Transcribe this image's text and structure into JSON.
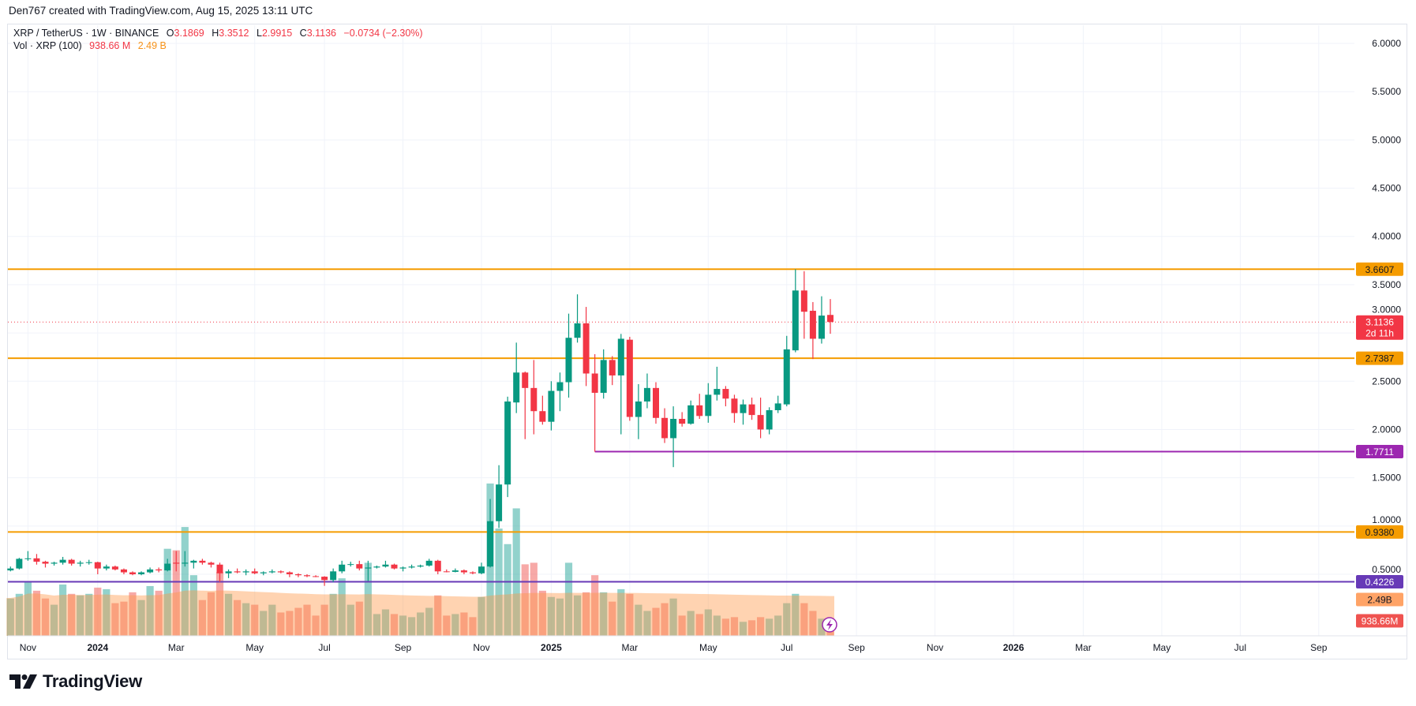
{
  "credit": "Den767 created with TradingView.com, Aug 15, 2025 13:11 UTC",
  "legend": {
    "symbol": "XRP / TetherUS · 1W · BINANCE",
    "o_label": "O",
    "o": "3.1869",
    "h_label": "H",
    "h": "3.3512",
    "l_label": "L",
    "l": "2.9915",
    "c_label": "C",
    "c": "3.1136",
    "change": "−0.0734 (−2.30%)",
    "vol_label": "Vol · XRP (100)",
    "vol": "938.66 M",
    "vol_ma": "2.49 B"
  },
  "logo_text": "TradingView",
  "colors": {
    "up": "#089981",
    "down": "#f23645",
    "orange_line": "#f59c00",
    "purple_line": "#9c27b0",
    "indigo_line": "#673ab7",
    "volume_ma_area": "#ffa366"
  },
  "chart_data": {
    "type": "candlestick",
    "interval": "1W",
    "y_range": [
      0.5,
      6.0
    ],
    "y_ticks": [
      "6.0000",
      "5.5000",
      "5.0000",
      "4.5000",
      "4.0000",
      "3.5000",
      "3.0000",
      "2.5000",
      "2.0000",
      "1.5000",
      "1.0000",
      "0.5000"
    ],
    "y_tick_values": [
      6.0,
      5.5,
      5.0,
      4.5,
      4.0,
      3.5,
      3.0,
      2.5,
      2.0,
      1.5,
      1.0,
      0.5
    ],
    "grid": true,
    "x_ticks": [
      {
        "label": "Nov",
        "date": "2023-11-06"
      },
      {
        "label": "2024",
        "date": "2024-01-01"
      },
      {
        "label": "Mar",
        "date": "2024-03-04"
      },
      {
        "label": "May",
        "date": "2024-05-06"
      },
      {
        "label": "Jul",
        "date": "2024-07-01"
      },
      {
        "label": "Sep",
        "date": "2024-09-02"
      },
      {
        "label": "Nov",
        "date": "2024-11-04"
      },
      {
        "label": "2025",
        "date": "2024-12-30"
      },
      {
        "label": "Mar",
        "date": "2025-03-03"
      },
      {
        "label": "May",
        "date": "2025-05-05"
      },
      {
        "label": "Jul",
        "date": "2025-07-07"
      },
      {
        "label": "Sep",
        "date": "2025-09-01"
      },
      {
        "label": "Nov",
        "date": "2025-11-03"
      },
      {
        "label": "2026",
        "date": "2026-01-05"
      },
      {
        "label": "Mar",
        "date": "2026-03-02"
      },
      {
        "label": "May",
        "date": "2026-05-04"
      },
      {
        "label": "Jul",
        "date": "2026-07-06"
      },
      {
        "label": "Sep",
        "date": "2026-09-07"
      }
    ],
    "candles_columns": [
      "date",
      "open",
      "high",
      "low",
      "close",
      "volume_billions"
    ],
    "candles": [
      [
        "2023-10-23",
        0.54,
        0.58,
        0.53,
        0.56,
        2.4
      ],
      [
        "2023-10-30",
        0.56,
        0.67,
        0.55,
        0.66,
        2.7
      ],
      [
        "2023-11-06",
        0.66,
        0.74,
        0.64,
        0.665,
        3.5
      ],
      [
        "2023-11-13",
        0.665,
        0.71,
        0.6,
        0.63,
        2.9
      ],
      [
        "2023-11-20",
        0.63,
        0.64,
        0.57,
        0.61,
        2.4
      ],
      [
        "2023-11-27",
        0.61,
        0.63,
        0.59,
        0.62,
        2.0
      ],
      [
        "2023-12-04",
        0.62,
        0.68,
        0.6,
        0.65,
        3.3
      ],
      [
        "2023-12-11",
        0.65,
        0.66,
        0.59,
        0.61,
        2.7
      ],
      [
        "2023-12-18",
        0.61,
        0.64,
        0.58,
        0.62,
        2.6
      ],
      [
        "2023-12-25",
        0.62,
        0.65,
        0.6,
        0.625,
        2.7
      ],
      [
        "2024-01-01",
        0.625,
        0.63,
        0.5,
        0.56,
        3.1
      ],
      [
        "2024-01-08",
        0.56,
        0.6,
        0.54,
        0.58,
        3.0
      ],
      [
        "2024-01-15",
        0.58,
        0.59,
        0.54,
        0.55,
        2.1
      ],
      [
        "2024-01-22",
        0.55,
        0.56,
        0.5,
        0.52,
        2.2
      ],
      [
        "2024-01-29",
        0.52,
        0.53,
        0.49,
        0.5,
        2.8
      ],
      [
        "2024-02-05",
        0.5,
        0.53,
        0.49,
        0.52,
        2.3
      ],
      [
        "2024-02-12",
        0.52,
        0.57,
        0.51,
        0.55,
        3.2
      ],
      [
        "2024-02-19",
        0.55,
        0.57,
        0.52,
        0.54,
        2.9
      ],
      [
        "2024-02-26",
        0.54,
        0.66,
        0.53,
        0.61,
        5.6
      ],
      [
        "2024-03-04",
        0.62,
        0.74,
        0.53,
        0.61,
        5.5
      ],
      [
        "2024-03-11",
        0.61,
        0.74,
        0.58,
        0.62,
        7.0
      ],
      [
        "2024-03-18",
        0.62,
        0.65,
        0.56,
        0.64,
        3.9
      ],
      [
        "2024-03-25",
        0.64,
        0.66,
        0.6,
        0.62,
        2.3
      ],
      [
        "2024-04-01",
        0.62,
        0.63,
        0.57,
        0.6,
        2.8
      ],
      [
        "2024-04-08",
        0.6,
        0.62,
        0.42,
        0.51,
        4.1
      ],
      [
        "2024-04-15",
        0.51,
        0.55,
        0.46,
        0.53,
        2.7
      ],
      [
        "2024-04-22",
        0.53,
        0.56,
        0.51,
        0.52,
        2.3
      ],
      [
        "2024-04-29",
        0.52,
        0.55,
        0.49,
        0.53,
        2.1
      ],
      [
        "2024-05-06",
        0.53,
        0.56,
        0.5,
        0.51,
        2.0
      ],
      [
        "2024-05-13",
        0.51,
        0.53,
        0.49,
        0.52,
        1.6
      ],
      [
        "2024-05-20",
        0.52,
        0.55,
        0.51,
        0.53,
        2.0
      ],
      [
        "2024-05-27",
        0.53,
        0.54,
        0.51,
        0.52,
        1.5
      ],
      [
        "2024-06-03",
        0.52,
        0.53,
        0.47,
        0.5,
        1.6
      ],
      [
        "2024-06-10",
        0.5,
        0.51,
        0.47,
        0.49,
        1.8
      ],
      [
        "2024-06-17",
        0.49,
        0.5,
        0.47,
        0.48,
        2.0
      ],
      [
        "2024-06-24",
        0.48,
        0.49,
        0.47,
        0.475,
        1.3
      ],
      [
        "2024-07-01",
        0.475,
        0.48,
        0.38,
        0.44,
        2.0
      ],
      [
        "2024-07-08",
        0.44,
        0.56,
        0.42,
        0.53,
        2.7
      ],
      [
        "2024-07-15",
        0.53,
        0.64,
        0.51,
        0.6,
        3.7
      ],
      [
        "2024-07-22",
        0.6,
        0.63,
        0.58,
        0.605,
        2.0
      ],
      [
        "2024-07-29",
        0.605,
        0.64,
        0.54,
        0.56,
        2.2
      ],
      [
        "2024-08-05",
        0.56,
        0.64,
        0.43,
        0.57,
        4.7
      ],
      [
        "2024-08-12",
        0.57,
        0.59,
        0.56,
        0.58,
        1.4
      ],
      [
        "2024-08-19",
        0.58,
        0.64,
        0.57,
        0.6,
        1.7
      ],
      [
        "2024-08-26",
        0.6,
        0.61,
        0.55,
        0.56,
        1.4
      ],
      [
        "2024-09-02",
        0.56,
        0.58,
        0.53,
        0.57,
        1.3
      ],
      [
        "2024-09-09",
        0.57,
        0.6,
        0.56,
        0.58,
        1.2
      ],
      [
        "2024-09-16",
        0.58,
        0.6,
        0.57,
        0.59,
        1.5
      ],
      [
        "2024-09-23",
        0.59,
        0.66,
        0.58,
        0.64,
        1.8
      ],
      [
        "2024-09-30",
        0.64,
        0.65,
        0.5,
        0.53,
        2.6
      ],
      [
        "2024-10-07",
        0.53,
        0.55,
        0.52,
        0.525,
        1.3
      ],
      [
        "2024-10-14",
        0.525,
        0.56,
        0.52,
        0.54,
        1.4
      ],
      [
        "2024-10-21",
        0.54,
        0.55,
        0.5,
        0.52,
        1.5
      ],
      [
        "2024-10-28",
        0.52,
        0.53,
        0.5,
        0.51,
        1.2
      ],
      [
        "2024-11-04",
        0.51,
        0.62,
        0.5,
        0.58,
        2.5
      ],
      [
        "2024-11-11",
        0.58,
        1.28,
        0.57,
        1.05,
        9.8
      ],
      [
        "2024-11-18",
        1.05,
        1.63,
        0.98,
        1.43,
        6.9
      ],
      [
        "2024-11-25",
        1.43,
        2.34,
        1.3,
        2.29,
        5.9
      ],
      [
        "2024-12-02",
        2.28,
        2.9,
        2.17,
        2.59,
        8.2
      ],
      [
        "2024-12-09",
        2.59,
        2.6,
        1.9,
        2.43,
        4.6
      ],
      [
        "2024-12-16",
        2.43,
        2.72,
        1.95,
        2.19,
        4.7
      ],
      [
        "2024-12-23",
        2.19,
        2.35,
        2.05,
        2.08,
        2.9
      ],
      [
        "2024-12-30",
        2.08,
        2.5,
        1.99,
        2.4,
        2.5
      ],
      [
        "2025-01-06",
        2.4,
        2.59,
        2.19,
        2.49,
        2.4
      ],
      [
        "2025-01-13",
        2.49,
        3.2,
        2.33,
        2.95,
        4.7
      ],
      [
        "2025-01-20",
        2.95,
        3.4,
        2.9,
        3.1,
        2.6
      ],
      [
        "2025-01-27",
        3.1,
        3.27,
        2.45,
        2.58,
        2.8
      ],
      [
        "2025-02-03",
        2.58,
        2.78,
        1.77,
        2.38,
        3.9
      ],
      [
        "2025-02-10",
        2.38,
        2.83,
        2.32,
        2.72,
        2.8
      ],
      [
        "2025-02-17",
        2.72,
        2.76,
        2.46,
        2.56,
        2.2
      ],
      [
        "2025-02-24",
        2.56,
        2.99,
        1.95,
        2.94,
        3.0
      ],
      [
        "2025-03-03",
        2.93,
        2.96,
        2.09,
        2.13,
        2.7
      ],
      [
        "2025-03-10",
        2.13,
        2.47,
        1.9,
        2.29,
        2.0
      ],
      [
        "2025-03-17",
        2.29,
        2.58,
        2.22,
        2.43,
        1.6
      ],
      [
        "2025-03-24",
        2.43,
        2.49,
        2.06,
        2.12,
        1.8
      ],
      [
        "2025-03-31",
        2.12,
        2.22,
        1.86,
        1.91,
        2.1
      ],
      [
        "2025-04-07",
        1.91,
        2.24,
        1.61,
        2.11,
        2.4
      ],
      [
        "2025-04-14",
        2.11,
        2.18,
        2.03,
        2.06,
        1.3
      ],
      [
        "2025-04-21",
        2.06,
        2.3,
        2.05,
        2.25,
        1.6
      ],
      [
        "2025-04-28",
        2.25,
        2.37,
        2.11,
        2.14,
        1.4
      ],
      [
        "2025-05-05",
        2.14,
        2.48,
        2.07,
        2.36,
        1.7
      ],
      [
        "2025-05-12",
        2.36,
        2.65,
        2.3,
        2.42,
        1.3
      ],
      [
        "2025-05-19",
        2.42,
        2.45,
        2.24,
        2.32,
        1.1
      ],
      [
        "2025-05-26",
        2.32,
        2.36,
        2.07,
        2.17,
        1.2
      ],
      [
        "2025-06-02",
        2.17,
        2.31,
        2.05,
        2.26,
        0.9
      ],
      [
        "2025-06-09",
        2.26,
        2.33,
        2.1,
        2.15,
        1.0
      ],
      [
        "2025-06-16",
        2.15,
        2.33,
        1.91,
        2.0,
        1.2
      ],
      [
        "2025-06-23",
        2.0,
        2.23,
        1.95,
        2.2,
        1.1
      ],
      [
        "2025-06-30",
        2.2,
        2.35,
        2.17,
        2.27,
        1.3
      ],
      [
        "2025-07-07",
        2.26,
        2.97,
        2.24,
        2.83,
        2.1
      ],
      [
        "2025-07-14",
        2.82,
        3.66,
        2.8,
        3.44,
        2.7
      ],
      [
        "2025-07-21",
        3.44,
        3.64,
        2.94,
        3.22,
        2.1
      ],
      [
        "2025-07-28",
        3.23,
        3.32,
        2.73,
        2.94,
        1.6
      ],
      [
        "2025-08-04",
        2.94,
        3.38,
        2.89,
        3.18,
        1.1
      ],
      [
        "2025-08-11",
        3.1869,
        3.3512,
        2.9915,
        3.1136,
        0.93866
      ]
    ],
    "volume_ma_period": 100,
    "horizontal_lines": [
      {
        "price": 3.6607,
        "label": "3.6607",
        "color": "#f59c00",
        "from": "2023-10-16"
      },
      {
        "price": 2.7387,
        "label": "2.7387",
        "color": "#f59c00",
        "from": "2023-10-16"
      },
      {
        "price": 1.7711,
        "label": "1.7711",
        "color": "#9c27b0",
        "from": "2025-02-03"
      },
      {
        "price": 0.938,
        "label": "0.9380",
        "color": "#f59c00",
        "from": "2023-10-16"
      },
      {
        "price": 0.4226,
        "label": "0.4226",
        "color": "#673ab7",
        "from": "2023-10-16"
      }
    ],
    "last_price": {
      "price": 3.1136,
      "label": "3.1136",
      "countdown": "2d 11h",
      "color": "#f23645"
    },
    "volume_labels": {
      "ma": "2.49B",
      "ma_value_billions": 2.49,
      "last": "938.66M"
    }
  }
}
